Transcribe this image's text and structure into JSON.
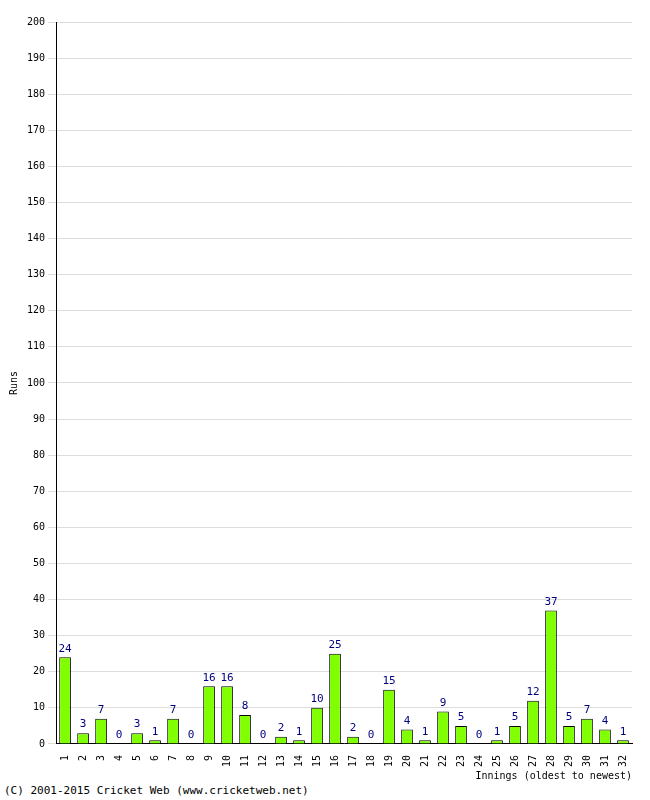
{
  "chart_data": {
    "type": "bar",
    "categories": [
      "1",
      "2",
      "3",
      "4",
      "5",
      "6",
      "7",
      "8",
      "9",
      "10",
      "11",
      "12",
      "13",
      "14",
      "15",
      "16",
      "17",
      "18",
      "19",
      "20",
      "21",
      "22",
      "23",
      "24",
      "25",
      "26",
      "27",
      "28",
      "29",
      "30",
      "31",
      "32"
    ],
    "values": [
      24,
      3,
      7,
      0,
      3,
      1,
      7,
      0,
      16,
      16,
      8,
      0,
      2,
      1,
      10,
      25,
      2,
      0,
      15,
      4,
      1,
      9,
      5,
      0,
      1,
      5,
      12,
      37,
      5,
      7,
      4,
      1
    ],
    "color": "#80ff00",
    "x_label": "Innings (oldest to newest)",
    "y_label": "Runs",
    "annotations": [
      "(C) 2001-2015 Cricket Web (www.cricketweb.net)"
    ],
    "ylim": [
      0,
      200
    ],
    "yticks": [
      0,
      10,
      20,
      30,
      40,
      50,
      60,
      70,
      80,
      90,
      100,
      110,
      120,
      130,
      140,
      150,
      160,
      170,
      180,
      190,
      200
    ],
    "grid": true,
    "data_labels": true
  }
}
